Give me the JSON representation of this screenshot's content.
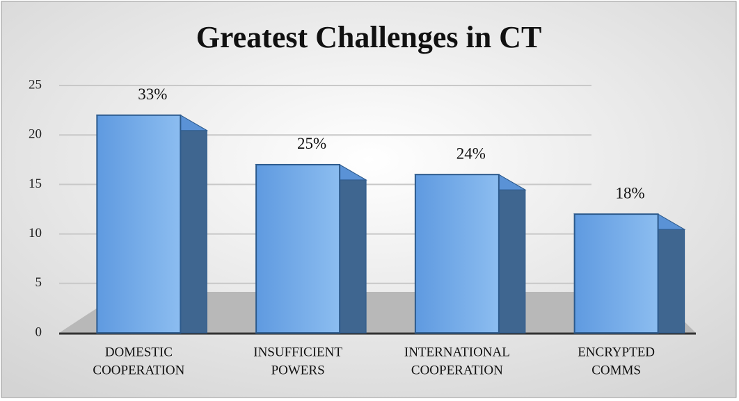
{
  "chart_data": {
    "type": "bar",
    "title": "Greatest Challenges in CT",
    "categories": [
      [
        "DOMESTIC",
        "COOPERATION"
      ],
      [
        "INSUFFICIENT",
        "POWERS"
      ],
      [
        "INTERNATIONAL",
        "COOPERATION"
      ],
      [
        "ENCRYPTED",
        "COMMS"
      ]
    ],
    "values": [
      22,
      17,
      16,
      12
    ],
    "percent_labels": [
      "33%",
      "25%",
      "24%",
      "18%"
    ],
    "color": "#6fa8e6",
    "ylim": [
      0,
      25
    ],
    "yticks": [
      0,
      5,
      10,
      15,
      20,
      25
    ],
    "grid": true
  }
}
